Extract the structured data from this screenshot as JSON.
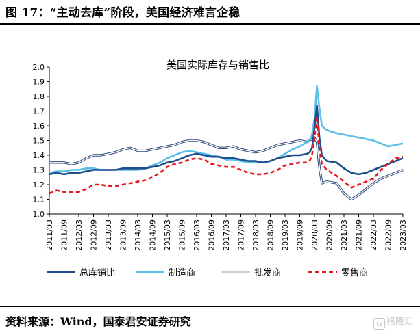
{
  "figure": {
    "title": "图 17：“主动去库”阶段，美国经济难言企稳",
    "source": "资料来源：Wind，国泰君安证券研究",
    "watermark": "格隆汇",
    "watermark_logo": "G"
  },
  "chart_data": {
    "type": "line",
    "title": "美国实际库存与销售比",
    "xlabel": "",
    "ylabel": "",
    "ylim": [
      1.0,
      2.0
    ],
    "yticks": [
      "1.0",
      "1.1",
      "1.2",
      "1.3",
      "1.4",
      "1.5",
      "1.6",
      "1.7",
      "1.8",
      "1.9",
      "2.0"
    ],
    "xlim": [
      "2011/03",
      "2023/03"
    ],
    "xticks": [
      "2011/03",
      "2011/09",
      "2012/03",
      "2012/09",
      "2013/03",
      "2013/09",
      "2014/03",
      "2014/09",
      "2015/03",
      "2015/09",
      "2016/03",
      "2016/09",
      "2017/03",
      "2017/09",
      "2018/03",
      "2018/09",
      "2019/03",
      "2019/09",
      "2020/03",
      "2020/09",
      "2021/03",
      "2021/09",
      "2022/03",
      "2022/09",
      "2023/03"
    ],
    "grid": false,
    "legend_position": "bottom",
    "series": [
      {
        "name": "总库销比",
        "color": "#1f4e8c",
        "style": "solid-thick",
        "points": [
          [
            "2011/03",
            1.27
          ],
          [
            "2011/06",
            1.28
          ],
          [
            "2011/09",
            1.27
          ],
          [
            "2011/12",
            1.28
          ],
          [
            "2012/03",
            1.28
          ],
          [
            "2012/06",
            1.29
          ],
          [
            "2012/09",
            1.3
          ],
          [
            "2012/12",
            1.3
          ],
          [
            "2013/03",
            1.3
          ],
          [
            "2013/06",
            1.3
          ],
          [
            "2013/09",
            1.31
          ],
          [
            "2013/12",
            1.31
          ],
          [
            "2014/03",
            1.31
          ],
          [
            "2014/06",
            1.31
          ],
          [
            "2014/09",
            1.32
          ],
          [
            "2014/12",
            1.33
          ],
          [
            "2015/03",
            1.35
          ],
          [
            "2015/06",
            1.36
          ],
          [
            "2015/09",
            1.38
          ],
          [
            "2015/12",
            1.4
          ],
          [
            "2016/03",
            1.41
          ],
          [
            "2016/06",
            1.4
          ],
          [
            "2016/09",
            1.39
          ],
          [
            "2016/12",
            1.39
          ],
          [
            "2017/03",
            1.38
          ],
          [
            "2017/06",
            1.38
          ],
          [
            "2017/09",
            1.37
          ],
          [
            "2017/12",
            1.36
          ],
          [
            "2018/03",
            1.36
          ],
          [
            "2018/06",
            1.35
          ],
          [
            "2018/09",
            1.36
          ],
          [
            "2018/12",
            1.38
          ],
          [
            "2019/03",
            1.39
          ],
          [
            "2019/06",
            1.4
          ],
          [
            "2019/09",
            1.4
          ],
          [
            "2019/12",
            1.41
          ],
          [
            "2020/01",
            1.42
          ],
          [
            "2020/02",
            1.45
          ],
          [
            "2020/03",
            1.58
          ],
          [
            "2020/04",
            1.74
          ],
          [
            "2020/05",
            1.52
          ],
          [
            "2020/06",
            1.4
          ],
          [
            "2020/08",
            1.36
          ],
          [
            "2020/12",
            1.35
          ],
          [
            "2021/03",
            1.31
          ],
          [
            "2021/06",
            1.28
          ],
          [
            "2021/09",
            1.27
          ],
          [
            "2021/12",
            1.28
          ],
          [
            "2022/03",
            1.3
          ],
          [
            "2022/06",
            1.32
          ],
          [
            "2022/09",
            1.34
          ],
          [
            "2022/12",
            1.36
          ],
          [
            "2023/03",
            1.38
          ]
        ]
      },
      {
        "name": "制造商",
        "color": "#5bbfe8",
        "style": "solid-thick",
        "points": [
          [
            "2011/03",
            1.28
          ],
          [
            "2011/06",
            1.29
          ],
          [
            "2011/09",
            1.29
          ],
          [
            "2011/12",
            1.3
          ],
          [
            "2012/03",
            1.3
          ],
          [
            "2012/06",
            1.31
          ],
          [
            "2012/09",
            1.31
          ],
          [
            "2012/12",
            1.3
          ],
          [
            "2013/03",
            1.3
          ],
          [
            "2013/06",
            1.3
          ],
          [
            "2013/09",
            1.3
          ],
          [
            "2013/12",
            1.3
          ],
          [
            "2014/03",
            1.3
          ],
          [
            "2014/06",
            1.31
          ],
          [
            "2014/09",
            1.33
          ],
          [
            "2014/12",
            1.35
          ],
          [
            "2015/03",
            1.38
          ],
          [
            "2015/06",
            1.4
          ],
          [
            "2015/09",
            1.42
          ],
          [
            "2015/12",
            1.43
          ],
          [
            "2016/03",
            1.42
          ],
          [
            "2016/06",
            1.41
          ],
          [
            "2016/09",
            1.4
          ],
          [
            "2016/12",
            1.39
          ],
          [
            "2017/03",
            1.37
          ],
          [
            "2017/06",
            1.37
          ],
          [
            "2017/09",
            1.36
          ],
          [
            "2017/12",
            1.35
          ],
          [
            "2018/03",
            1.35
          ],
          [
            "2018/06",
            1.35
          ],
          [
            "2018/09",
            1.36
          ],
          [
            "2018/12",
            1.38
          ],
          [
            "2019/03",
            1.41
          ],
          [
            "2019/06",
            1.44
          ],
          [
            "2019/09",
            1.46
          ],
          [
            "2019/12",
            1.49
          ],
          [
            "2020/01",
            1.5
          ],
          [
            "2020/02",
            1.54
          ],
          [
            "2020/03",
            1.65
          ],
          [
            "2020/04",
            1.87
          ],
          [
            "2020/05",
            1.72
          ],
          [
            "2020/06",
            1.6
          ],
          [
            "2020/08",
            1.57
          ],
          [
            "2020/12",
            1.55
          ],
          [
            "2021/03",
            1.54
          ],
          [
            "2021/06",
            1.53
          ],
          [
            "2021/09",
            1.52
          ],
          [
            "2021/12",
            1.51
          ],
          [
            "2022/03",
            1.5
          ],
          [
            "2022/06",
            1.48
          ],
          [
            "2022/09",
            1.46
          ],
          [
            "2022/12",
            1.47
          ],
          [
            "2023/03",
            1.48
          ]
        ]
      },
      {
        "name": "批发商",
        "color": "#2e4a7c",
        "style": "double",
        "points": [
          [
            "2011/03",
            1.35
          ],
          [
            "2011/06",
            1.35
          ],
          [
            "2011/09",
            1.35
          ],
          [
            "2011/12",
            1.34
          ],
          [
            "2012/03",
            1.35
          ],
          [
            "2012/06",
            1.38
          ],
          [
            "2012/09",
            1.4
          ],
          [
            "2012/12",
            1.4
          ],
          [
            "2013/03",
            1.41
          ],
          [
            "2013/06",
            1.42
          ],
          [
            "2013/09",
            1.44
          ],
          [
            "2013/12",
            1.45
          ],
          [
            "2014/03",
            1.43
          ],
          [
            "2014/06",
            1.43
          ],
          [
            "2014/09",
            1.44
          ],
          [
            "2014/12",
            1.45
          ],
          [
            "2015/03",
            1.46
          ],
          [
            "2015/06",
            1.47
          ],
          [
            "2015/09",
            1.49
          ],
          [
            "2015/12",
            1.5
          ],
          [
            "2016/03",
            1.5
          ],
          [
            "2016/06",
            1.49
          ],
          [
            "2016/09",
            1.47
          ],
          [
            "2016/12",
            1.45
          ],
          [
            "2017/03",
            1.45
          ],
          [
            "2017/06",
            1.46
          ],
          [
            "2017/09",
            1.44
          ],
          [
            "2017/12",
            1.43
          ],
          [
            "2018/03",
            1.42
          ],
          [
            "2018/06",
            1.43
          ],
          [
            "2018/09",
            1.45
          ],
          [
            "2018/12",
            1.47
          ],
          [
            "2019/03",
            1.48
          ],
          [
            "2019/06",
            1.49
          ],
          [
            "2019/09",
            1.5
          ],
          [
            "2019/12",
            1.49
          ],
          [
            "2020/01",
            1.5
          ],
          [
            "2020/02",
            1.51
          ],
          [
            "2020/03",
            1.52
          ],
          [
            "2020/04",
            1.49
          ],
          [
            "2020/05",
            1.32
          ],
          [
            "2020/06",
            1.21
          ],
          [
            "2020/08",
            1.22
          ],
          [
            "2020/12",
            1.21
          ],
          [
            "2021/03",
            1.14
          ],
          [
            "2021/06",
            1.1
          ],
          [
            "2021/09",
            1.13
          ],
          [
            "2021/12",
            1.17
          ],
          [
            "2022/03",
            1.21
          ],
          [
            "2022/06",
            1.24
          ],
          [
            "2022/09",
            1.26
          ],
          [
            "2022/12",
            1.28
          ],
          [
            "2023/03",
            1.3
          ]
        ]
      },
      {
        "name": "零售商",
        "color": "#e8171c",
        "style": "dashed",
        "points": [
          [
            "2011/03",
            1.14
          ],
          [
            "2011/06",
            1.16
          ],
          [
            "2011/09",
            1.15
          ],
          [
            "2011/12",
            1.15
          ],
          [
            "2012/03",
            1.15
          ],
          [
            "2012/06",
            1.17
          ],
          [
            "2012/09",
            1.2
          ],
          [
            "2012/12",
            1.2
          ],
          [
            "2013/03",
            1.19
          ],
          [
            "2013/06",
            1.19
          ],
          [
            "2013/09",
            1.2
          ],
          [
            "2013/12",
            1.21
          ],
          [
            "2014/03",
            1.22
          ],
          [
            "2014/06",
            1.23
          ],
          [
            "2014/09",
            1.25
          ],
          [
            "2014/12",
            1.28
          ],
          [
            "2015/03",
            1.32
          ],
          [
            "2015/06",
            1.34
          ],
          [
            "2015/09",
            1.35
          ],
          [
            "2015/12",
            1.37
          ],
          [
            "2016/03",
            1.38
          ],
          [
            "2016/06",
            1.37
          ],
          [
            "2016/09",
            1.34
          ],
          [
            "2016/12",
            1.33
          ],
          [
            "2017/03",
            1.32
          ],
          [
            "2017/06",
            1.32
          ],
          [
            "2017/09",
            1.3
          ],
          [
            "2017/12",
            1.28
          ],
          [
            "2018/03",
            1.27
          ],
          [
            "2018/06",
            1.27
          ],
          [
            "2018/09",
            1.28
          ],
          [
            "2018/12",
            1.3
          ],
          [
            "2019/03",
            1.33
          ],
          [
            "2019/06",
            1.34
          ],
          [
            "2019/09",
            1.35
          ],
          [
            "2019/12",
            1.35
          ],
          [
            "2020/01",
            1.36
          ],
          [
            "2020/02",
            1.4
          ],
          [
            "2020/03",
            1.52
          ],
          [
            "2020/04",
            1.66
          ],
          [
            "2020/05",
            1.45
          ],
          [
            "2020/06",
            1.34
          ],
          [
            "2020/08",
            1.3
          ],
          [
            "2020/12",
            1.26
          ],
          [
            "2021/03",
            1.22
          ],
          [
            "2021/06",
            1.18
          ],
          [
            "2021/09",
            1.2
          ],
          [
            "2021/12",
            1.22
          ],
          [
            "2022/03",
            1.24
          ],
          [
            "2022/06",
            1.3
          ],
          [
            "2022/09",
            1.34
          ],
          [
            "2022/12",
            1.38
          ],
          [
            "2023/03",
            1.39
          ]
        ]
      }
    ]
  }
}
